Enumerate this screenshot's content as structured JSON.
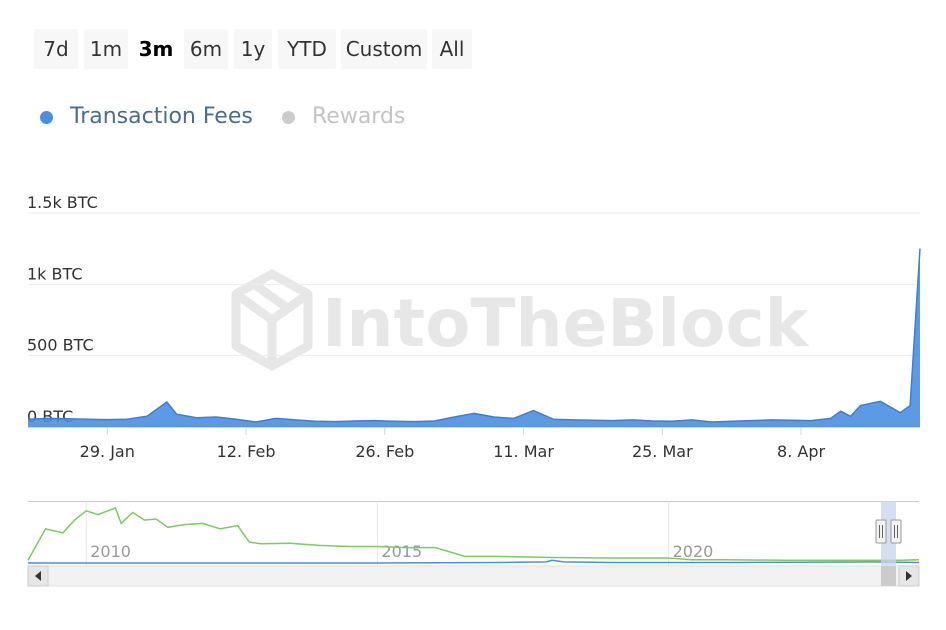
{
  "range_selector": {
    "buttons": [
      "7d",
      "1m",
      "3m",
      "6m",
      "1y",
      "YTD",
      "Custom",
      "All"
    ],
    "selected": "3m"
  },
  "legend": {
    "items": [
      {
        "label": "Transaction Fees",
        "color": "#4a8fe3",
        "enabled": true
      },
      {
        "label": "Rewards",
        "color": "#cccccc",
        "enabled": false
      }
    ]
  },
  "watermark": "IntoTheBlock",
  "chart_data": {
    "type": "area",
    "series": [
      {
        "name": "Transaction Fees",
        "color": "#4a8fe3",
        "x": [
          "2024-01-21",
          "2024-01-23",
          "2024-01-25",
          "2024-01-27",
          "2024-01-29",
          "2024-01-31",
          "2024-02-02",
          "2024-02-04",
          "2024-02-05",
          "2024-02-07",
          "2024-02-09",
          "2024-02-11",
          "2024-02-13",
          "2024-02-15",
          "2024-02-17",
          "2024-02-19",
          "2024-02-21",
          "2024-02-23",
          "2024-02-25",
          "2024-02-27",
          "2024-02-29",
          "2024-03-02",
          "2024-03-04",
          "2024-03-06",
          "2024-03-08",
          "2024-03-10",
          "2024-03-12",
          "2024-03-14",
          "2024-03-16",
          "2024-03-18",
          "2024-03-20",
          "2024-03-22",
          "2024-03-24",
          "2024-03-26",
          "2024-03-28",
          "2024-03-30",
          "2024-04-01",
          "2024-04-03",
          "2024-04-05",
          "2024-04-07",
          "2024-04-09",
          "2024-04-11",
          "2024-04-12",
          "2024-04-13",
          "2024-04-14",
          "2024-04-16",
          "2024-04-18",
          "2024-04-19",
          "2024-04-20"
        ],
        "values": [
          55,
          60,
          58,
          55,
          52,
          55,
          75,
          175,
          90,
          65,
          70,
          55,
          35,
          60,
          50,
          40,
          38,
          42,
          45,
          40,
          38,
          42,
          70,
          95,
          70,
          60,
          115,
          55,
          50,
          48,
          45,
          50,
          42,
          40,
          50,
          35,
          40,
          45,
          50,
          48,
          45,
          60,
          110,
          75,
          150,
          180,
          100,
          150,
          1250
        ]
      }
    ],
    "x_tick_labels": [
      "29. Jan",
      "12. Feb",
      "26. Feb",
      "11. Mar",
      "25. Mar",
      "8. Apr"
    ],
    "y_tick_labels": [
      "0 BTC",
      "500 BTC",
      "1k BTC",
      "1.5k BTC"
    ],
    "ylim": [
      0,
      1500
    ],
    "grid": true,
    "legend_position": "top-left"
  },
  "navigator": {
    "x_tick_labels": [
      "2010",
      "2015",
      "2020"
    ],
    "series": [
      {
        "name": "navigator-rewards",
        "color": "#7ccc5f",
        "x": [
          2009.0,
          2009.3,
          2009.6,
          2009.8,
          2010.0,
          2010.2,
          2010.5,
          2010.6,
          2010.8,
          2011.0,
          2011.2,
          2011.4,
          2011.7,
          2012.0,
          2012.3,
          2012.6,
          2012.8,
          2013.0,
          2013.5,
          2014.0,
          2014.5,
          2015.0,
          2015.5,
          2016.0,
          2016.5,
          2017.0,
          2018.0,
          2019.0,
          2020.0,
          2020.4,
          2021.0,
          2022.0,
          2023.0,
          2024.0,
          2024.3
        ],
        "values": [
          0.05,
          0.62,
          0.55,
          0.78,
          0.95,
          0.88,
          1.0,
          0.72,
          0.92,
          0.78,
          0.8,
          0.65,
          0.7,
          0.72,
          0.62,
          0.68,
          0.38,
          0.35,
          0.36,
          0.32,
          0.3,
          0.3,
          0.28,
          0.28,
          0.12,
          0.12,
          0.1,
          0.09,
          0.09,
          0.06,
          0.06,
          0.05,
          0.05,
          0.05,
          0.06
        ]
      },
      {
        "name": "navigator-fees",
        "color": "#4a8fe3",
        "x": [
          2009.0,
          2015.0,
          2016.0,
          2017.0,
          2017.9,
          2018.0,
          2018.2,
          2019.0,
          2021.0,
          2023.5,
          2024.0,
          2024.3
        ],
        "values": [
          0.0,
          0.0,
          0.005,
          0.01,
          0.02,
          0.05,
          0.02,
          0.01,
          0.01,
          0.02,
          0.015,
          0.01
        ]
      }
    ]
  }
}
